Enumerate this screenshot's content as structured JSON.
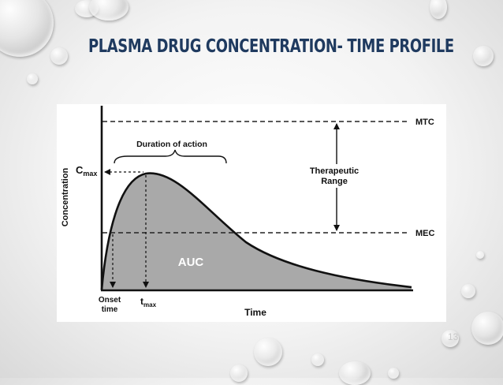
{
  "slide": {
    "title": "PLASMA DRUG CONCENTRATION- TIME PROFILE",
    "slide_number": "13"
  },
  "diagram": {
    "y_axis_label": "Concentration",
    "x_axis_label": "Time",
    "cmax_label_main": "C",
    "cmax_label_sub": "max",
    "tmax_label_main": "t",
    "tmax_label_sub": "max",
    "onset_label_line1": "Onset",
    "onset_label_line2": "time",
    "mtc_label": "MTC",
    "mec_label": "MEC",
    "duration_label": "Duration of action",
    "therapeutic_label_line1": "Therapeutic",
    "therapeutic_label_line2": "Range",
    "auc_label": "AUC"
  },
  "colors": {
    "title": "#1f3a5f",
    "auc_fill": "#a9a9a9",
    "curve": "#111111"
  }
}
